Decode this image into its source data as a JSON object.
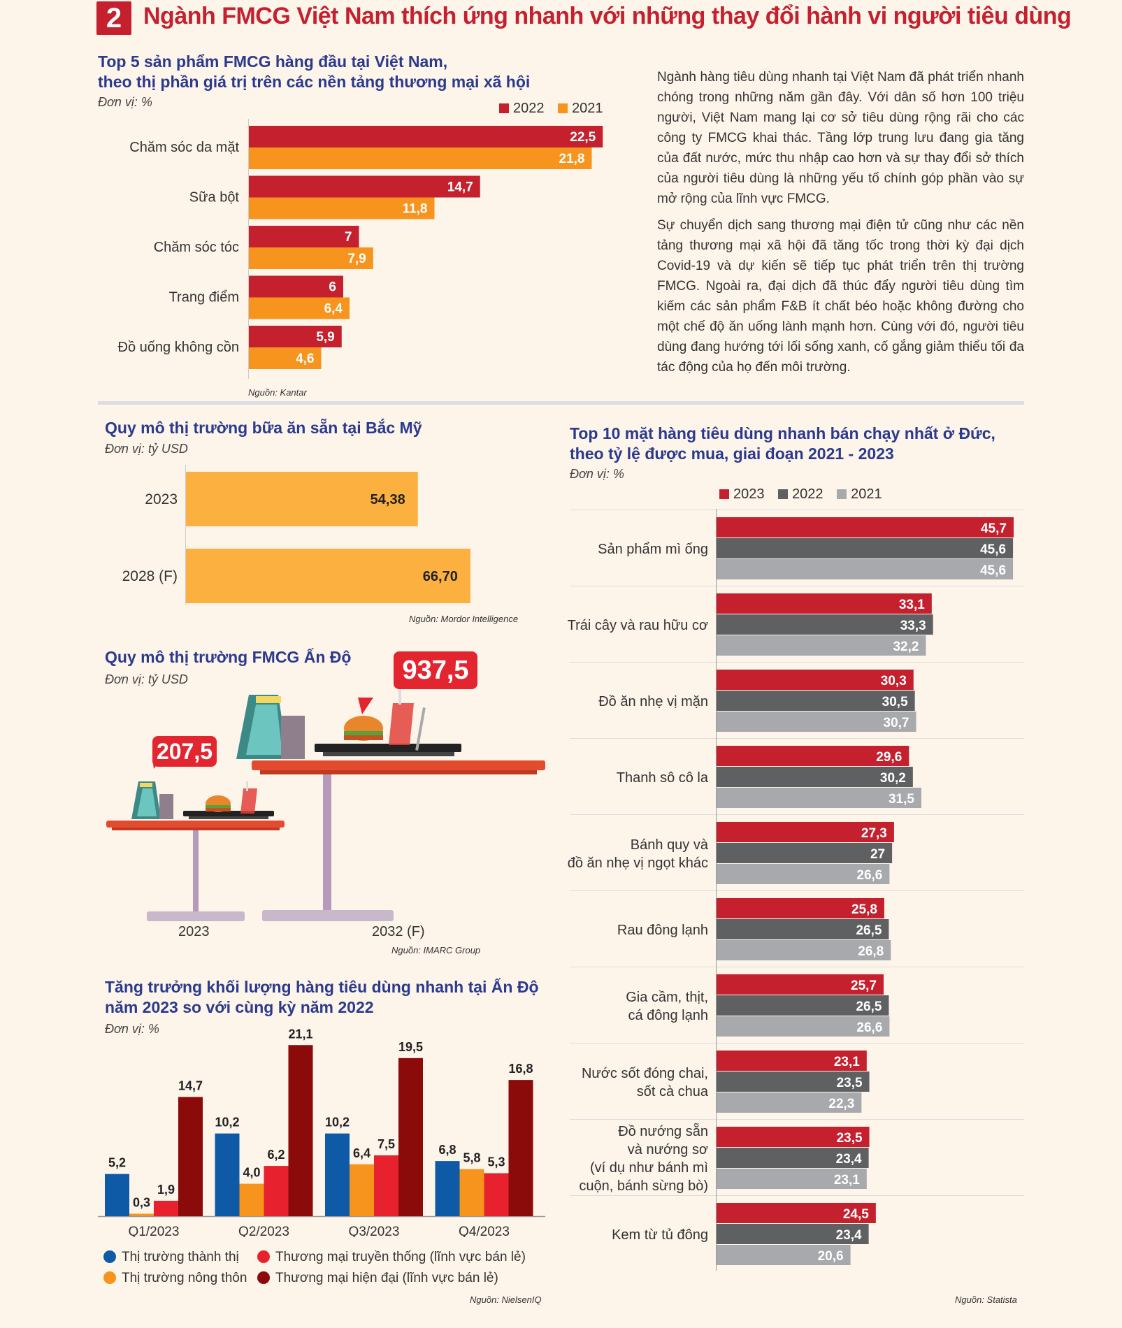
{
  "header": {
    "number": "2",
    "title": "Ngành FMCG Việt Nam thích ứng nhanh với những thay đổi hành vi người tiêu dùng"
  },
  "paragraphs": [
    "Ngành hàng tiêu dùng nhanh tại Việt Nam đã phát triển nhanh chóng trong những năm gần đây. Với dân số hơn 100 triệu người, Việt Nam mang lại cơ sở tiêu dùng rộng rãi cho các công ty FMCG khai thác. Tầng lớp trung lưu đang gia tăng của đất nước, mức thu nhập cao hơn và sự thay đổi sở thích của người tiêu dùng là những yếu tố chính góp phần vào sự mở rộng của lĩnh vực FMCG.",
    "Sự chuyển dịch sang thương mại điện tử cũng như các nền tảng thương mại xã hội đã tăng tốc trong thời kỳ đại dịch Covid-19 và dự kiến sẽ tiếp tục phát triển trên thị trường FMCG. Ngoài ra, đại dịch đã thúc đẩy người tiêu dùng tìm kiếm các sản phẩm F&B ít chất béo hoặc không đường cho một chế độ ăn uống lành mạnh hơn. Cùng với đó, người tiêu dùng đang hướng tới lối sống xanh, cố gắng giảm thiểu tối đa tác động của họ đến môi trường."
  ],
  "colors": {
    "red": "#c4202e",
    "orange": "#f7941d",
    "dark_gray": "#5f6062",
    "light_gray": "#a7a9ac",
    "blue": "#0e5aa7",
    "bright_red": "#e8212e",
    "maroon": "#8b0a0a",
    "navy": "#2a3a8c"
  },
  "chart_data": [
    {
      "id": "vn_fmcg",
      "type": "bar",
      "orientation": "horizontal",
      "title": "Top 5 sản phẩm FMCG hàng đầu tại Việt Nam, theo thị phần giá trị trên các nền tảng thương mại xã hội",
      "title_lines": [
        "Top 5 sản phẩm FMCG hàng đầu tại Việt Nam,",
        "theo thị phần giá trị trên các nền tảng thương mại xã hội"
      ],
      "unit": "Đơn vị: %",
      "source": "Nguồn: Kantar",
      "categories": [
        "Chăm sóc da mặt",
        "Sữa bột",
        "Chăm sóc tóc",
        "Trang điểm",
        "Đồ uống không cồn"
      ],
      "series": [
        {
          "name": "2022",
          "color": "#c4202e",
          "values": [
            22.5,
            14.7,
            7,
            6,
            5.9
          ],
          "labels": [
            "22,5",
            "14,7",
            "7",
            "6",
            "5,9"
          ]
        },
        {
          "name": "2021",
          "color": "#f7941d",
          "values": [
            21.8,
            11.8,
            7.9,
            6.4,
            4.6
          ],
          "labels": [
            "21,8",
            "11,8",
            "7,9",
            "6,4",
            "4,6"
          ]
        }
      ],
      "legend": "top-right"
    },
    {
      "id": "na_meals",
      "type": "bar",
      "orientation": "horizontal",
      "title": "Quy mô thị trường bữa ăn sẵn tại Bắc Mỹ",
      "unit": "Đơn vị: tỷ USD",
      "source": "Nguồn: Mordor Intelligence",
      "categories": [
        "2023",
        "2028 (F)"
      ],
      "values": [
        54.38,
        66.7
      ],
      "labels": [
        "54,38",
        "66,70"
      ],
      "color": "#fbb040"
    },
    {
      "id": "india_fmcg",
      "type": "bar",
      "title": "Quy mô thị trường FMCG Ấn Độ",
      "unit": "Đơn vị: tỷ USD",
      "source": "Nguồn: IMARC Group",
      "categories": [
        "2023",
        "2032 (F)"
      ],
      "values": [
        207.5,
        937.5
      ],
      "labels": [
        "207,5",
        "937,5"
      ]
    },
    {
      "id": "india_growth",
      "type": "bar",
      "title": "Tăng trưởng khối lượng hàng tiêu dùng nhanh tại Ấn Độ năm 2023 so với cùng kỳ năm 2022",
      "title_lines": [
        "Tăng trưởng khối lượng hàng tiêu dùng nhanh tại Ấn Độ",
        "năm 2023 so với cùng kỳ năm 2022"
      ],
      "unit": "Đơn vị: %",
      "source": "Nguồn: NielsenIQ",
      "categories": [
        "Q1/2023",
        "Q2/2023",
        "Q3/2023",
        "Q4/2023"
      ],
      "series": [
        {
          "name": "Thị trường thành thị",
          "color": "#0e5aa7",
          "values": [
            5.2,
            10.2,
            10.2,
            6.8
          ],
          "labels": [
            "5,2",
            "10,2",
            "10,2",
            "6,8"
          ]
        },
        {
          "name": "Thị trường nông thôn",
          "color": "#f7941d",
          "values": [
            0.3,
            4.0,
            6.4,
            5.8
          ],
          "labels": [
            "0,3",
            "4,0",
            "6,4",
            "5,8"
          ]
        },
        {
          "name": "Thương mại truyền thống (lĩnh vực bán lẻ)",
          "color": "#e8212e",
          "values": [
            1.9,
            6.2,
            7.5,
            5.3
          ],
          "labels": [
            "1,9",
            "6,2",
            "7,5",
            "5,3"
          ]
        },
        {
          "name": "Thương mại hiện đại (lĩnh vực bán lẻ)",
          "color": "#8b0a0a",
          "values": [
            14.7,
            21.1,
            19.5,
            16.8
          ],
          "labels": [
            "14,7",
            "21,1",
            "19,5",
            "16,8"
          ]
        }
      ],
      "legend": "bottom"
    },
    {
      "id": "germany",
      "type": "bar",
      "orientation": "horizontal",
      "title": "Top 10 mặt hàng tiêu dùng nhanh bán chạy nhất ở Đức, theo tỷ lệ được mua, giai đoạn 2021 - 2023",
      "title_lines": [
        "Top 10 mặt hàng tiêu dùng nhanh bán chạy nhất ở Đức,",
        "theo tỷ lệ được mua, giai đoạn 2021 - 2023"
      ],
      "unit": "Đơn vị: %",
      "source": "Nguồn: Statista",
      "categories": [
        [
          "Sản phẩm mì ống"
        ],
        [
          "Trái cây và rau hữu cơ"
        ],
        [
          "Đồ ăn nhẹ vị mặn"
        ],
        [
          "Thanh sô cô la"
        ],
        [
          "Bánh quy và",
          "đồ ăn nhẹ vị ngọt khác"
        ],
        [
          "Rau đông lạnh"
        ],
        [
          "Gia cầm, thịt,",
          "cá đông lạnh"
        ],
        [
          "Nước sốt đóng chai,",
          "sốt cà chua"
        ],
        [
          "Đồ nướng sẵn",
          "và nướng sơ",
          "(ví dụ như bánh mì",
          "cuộn, bánh sừng bò)"
        ],
        [
          "Kem từ tủ đông"
        ]
      ],
      "series": [
        {
          "name": "2023",
          "color": "#c4202e",
          "values": [
            45.7,
            33.1,
            30.3,
            29.6,
            27.3,
            25.8,
            25.7,
            23.1,
            23.5,
            24.5
          ],
          "labels": [
            "45,7",
            "33,1",
            "30,3",
            "29,6",
            "27,3",
            "25,8",
            "25,7",
            "23,1",
            "23,5",
            "24,5"
          ]
        },
        {
          "name": "2022",
          "color": "#5f6062",
          "values": [
            45.6,
            33.3,
            30.5,
            30.2,
            27,
            26.5,
            26.5,
            23.5,
            23.4,
            23.4
          ],
          "labels": [
            "45,6",
            "33,3",
            "30,5",
            "30,2",
            "27",
            "26,5",
            "26,5",
            "23,5",
            "23,4",
            "23,4"
          ]
        },
        {
          "name": "2021",
          "color": "#a7a9ac",
          "values": [
            45.6,
            32.2,
            30.7,
            31.5,
            26.6,
            26.8,
            26.6,
            22.3,
            23.1,
            20.6
          ],
          "labels": [
            "45,6",
            "32,2",
            "30,7",
            "31,5",
            "26,6",
            "26,8",
            "26,6",
            "22,3",
            "23,1",
            "20,6"
          ]
        }
      ],
      "legend": "top-left"
    }
  ]
}
